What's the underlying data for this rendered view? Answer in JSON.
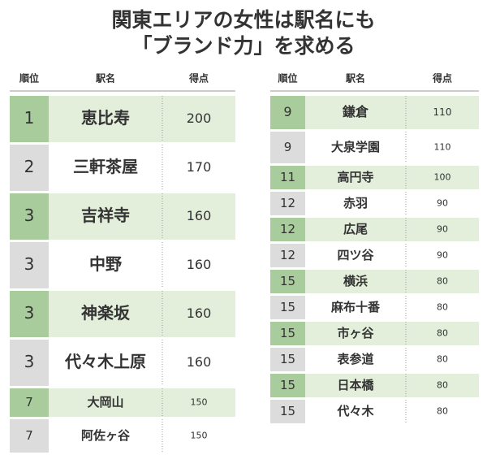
{
  "title": {
    "line1": "関東エリアの女性は駅名にも",
    "line2": "「ブランド力」を求める"
  },
  "left_table": {
    "header": [
      "順位",
      "駅名",
      "得点"
    ],
    "rows": [
      [
        1,
        "恵比寿",
        200
      ],
      [
        2,
        "三軒茶屋",
        170
      ],
      [
        3,
        "吉祥寺",
        160
      ],
      [
        3,
        "中野",
        160
      ],
      [
        3,
        "神楽坂",
        160
      ],
      [
        3,
        "代々木上原",
        160
      ],
      [
        7,
        "大岡山",
        150
      ],
      [
        7,
        "阿佐ヶ谷",
        150
      ]
    ]
  },
  "right_table": {
    "header": [
      "順位",
      "駅名",
      "得点"
    ],
    "rows": [
      [
        9,
        "鎌倉",
        110
      ],
      [
        9,
        "大泉学園",
        110
      ],
      [
        11,
        "高円寺",
        100
      ],
      [
        12,
        "赤羽",
        90
      ],
      [
        12,
        "広尾",
        90
      ],
      [
        12,
        "四ツ谷",
        90
      ],
      [
        15,
        "横浜",
        80
      ],
      [
        15,
        "麻布十番",
        80
      ],
      [
        15,
        "市ヶ谷",
        80
      ],
      [
        15,
        "表参道",
        80
      ],
      [
        15,
        "日本橋",
        80
      ],
      [
        15,
        "代々木",
        80
      ]
    ]
  }
}
